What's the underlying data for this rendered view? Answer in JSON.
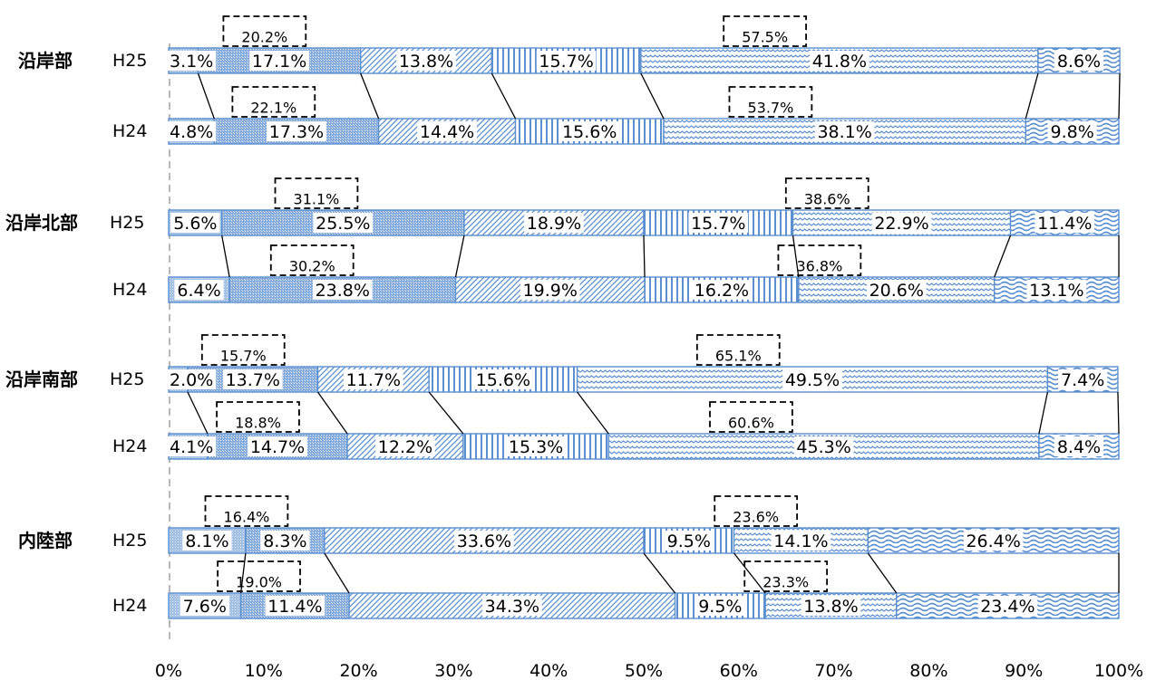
{
  "chart_data": {
    "type": "bar",
    "orientation": "horizontal",
    "stacked": true,
    "xlim": [
      0,
      100
    ],
    "x_ticks": [
      "0%",
      "10%",
      "20%",
      "30%",
      "40%",
      "50%",
      "60%",
      "70%",
      "80%",
      "90%",
      "100%"
    ],
    "groups": [
      {
        "name": "沿岸部",
        "rows": [
          {
            "label": "H25",
            "values": [
              3.1,
              17.1,
              13.8,
              15.7,
              41.8,
              8.6
            ],
            "value_labels": [
              "3.1%",
              "17.1%",
              "13.8%",
              "15.7%",
              "41.8%",
              "8.6%"
            ],
            "callouts": [
              {
                "label": "20.2%",
                "from": 0,
                "to": 1
              },
              {
                "label": "57.5%",
                "from": 3,
                "to": 4
              }
            ]
          },
          {
            "label": "H24",
            "values": [
              4.8,
              17.3,
              14.4,
              15.6,
              38.1,
              9.8
            ],
            "value_labels": [
              "4.8%",
              "17.3%",
              "14.4%",
              "15.6%",
              "38.1%",
              "9.8%"
            ],
            "callouts": [
              {
                "label": "22.1%",
                "from": 0,
                "to": 1
              },
              {
                "label": "53.7%",
                "from": 3,
                "to": 4
              }
            ]
          }
        ]
      },
      {
        "name": "沿岸北部",
        "rows": [
          {
            "label": "H25",
            "values": [
              5.6,
              25.5,
              18.9,
              15.7,
              22.9,
              11.4
            ],
            "value_labels": [
              "5.6%",
              "25.5%",
              "18.9%",
              "15.7%",
              "22.9%",
              "11.4%"
            ],
            "callouts": [
              {
                "label": "31.1%",
                "from": 0,
                "to": 1
              },
              {
                "label": "38.6%",
                "from": 3,
                "to": 4
              }
            ]
          },
          {
            "label": "H24",
            "values": [
              6.4,
              23.8,
              19.9,
              16.2,
              20.6,
              13.1
            ],
            "value_labels": [
              "6.4%",
              "23.8%",
              "19.9%",
              "16.2%",
              "20.6%",
              "13.1%"
            ],
            "callouts": [
              {
                "label": "30.2%",
                "from": 0,
                "to": 1
              },
              {
                "label": "36.8%",
                "from": 3,
                "to": 4
              }
            ]
          }
        ]
      },
      {
        "name": "沿岸南部",
        "rows": [
          {
            "label": "H25",
            "values": [
              2.0,
              13.7,
              11.7,
              15.6,
              49.5,
              7.4
            ],
            "value_labels": [
              "2.0%",
              "13.7%",
              "11.7%",
              "15.6%",
              "49.5%",
              "7.4%"
            ],
            "callouts": [
              {
                "label": "15.7%",
                "from": 0,
                "to": 1
              },
              {
                "label": "65.1%",
                "from": 3,
                "to": 4
              }
            ]
          },
          {
            "label": "H24",
            "values": [
              4.1,
              14.7,
              12.2,
              15.3,
              45.3,
              8.4
            ],
            "value_labels": [
              "4.1%",
              "14.7%",
              "12.2%",
              "15.3%",
              "45.3%",
              "8.4%"
            ],
            "callouts": [
              {
                "label": "18.8%",
                "from": 0,
                "to": 1
              },
              {
                "label": "60.6%",
                "from": 3,
                "to": 4
              }
            ]
          }
        ]
      },
      {
        "name": "内陸部",
        "rows": [
          {
            "label": "H25",
            "values": [
              8.1,
              8.3,
              33.6,
              9.5,
              14.1,
              26.4
            ],
            "value_labels": [
              "8.1%",
              "8.3%",
              "33.6%",
              "9.5%",
              "14.1%",
              "26.4%"
            ],
            "callouts": [
              {
                "label": "16.4%",
                "from": 0,
                "to": 1
              },
              {
                "label": "23.6%",
                "from": 3,
                "to": 4
              }
            ]
          },
          {
            "label": "H24",
            "values": [
              7.6,
              11.4,
              34.3,
              9.5,
              13.8,
              23.4
            ],
            "value_labels": [
              "7.6%",
              "11.4%",
              "34.3%",
              "9.5%",
              "13.8%",
              "23.4%"
            ],
            "callouts": [
              {
                "label": "19.0%",
                "from": 0,
                "to": 1
              },
              {
                "label": "23.3%",
                "from": 3,
                "to": 4
              }
            ]
          }
        ]
      }
    ],
    "segment_patterns": [
      "dots-light",
      "dots-dense",
      "diagonal",
      "vertical",
      "wave-small",
      "wave-large"
    ],
    "colors": {
      "segment_stroke": "#5B8FCF",
      "pattern": "#5B8FCF",
      "axis": "#A0A0A0",
      "callout": "#000000",
      "connector": "#000000"
    },
    "grid": false,
    "legend": "none"
  }
}
